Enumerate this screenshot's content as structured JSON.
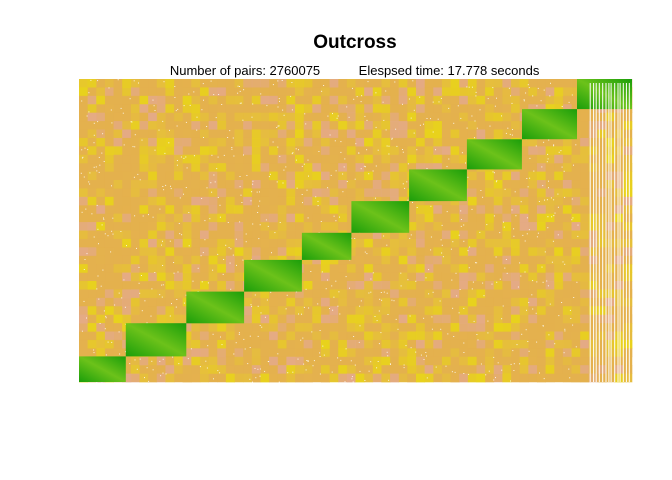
{
  "chart_data": {
    "type": "heatmap",
    "title": "Outcross",
    "subtitle": {
      "pairs": "Number of pairs: 2760075",
      "elapsed": "Elespsed time: 17.778 seconds"
    },
    "xlabel": "",
    "ylabel": "",
    "axes_shown": false,
    "colors": {
      "high": "#1a9e0a",
      "mid_high": "#6cc21a",
      "mid": "#e8d21c",
      "low": "#e4b14e",
      "lowest": "#e4aa86",
      "missing": "#ffffff"
    },
    "diagonal_blocks": 10,
    "block_relative_sizes": [
      0.085,
      0.11,
      0.105,
      0.105,
      0.09,
      0.105,
      0.105,
      0.1,
      0.1,
      0.1
    ]
  }
}
